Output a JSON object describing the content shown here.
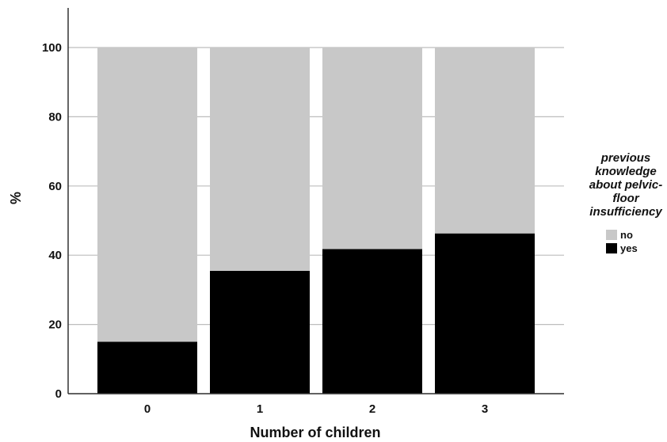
{
  "chart_data": {
    "type": "bar",
    "stacked": true,
    "categories": [
      "0",
      "1",
      "2",
      "3"
    ],
    "series": [
      {
        "name": "no",
        "values": [
          85,
          64.5,
          58.2,
          53.7
        ]
      },
      {
        "name": "yes",
        "values": [
          15,
          35.5,
          41.8,
          46.3
        ]
      }
    ],
    "xlabel": "Number of children",
    "ylabel": "%",
    "ylim": [
      0,
      100
    ],
    "yticks": [
      "0",
      "20",
      "40",
      "60",
      "80",
      "100"
    ],
    "grid": true,
    "legend": {
      "title_lines": [
        "previous",
        "knowledge",
        "about pelvic-",
        "floor",
        "insufficiency"
      ],
      "position": "right"
    },
    "colors": {
      "no": "#c8c8c8",
      "yes": "#000000",
      "grid": "#bdbdbd",
      "axis": "#333333"
    }
  }
}
